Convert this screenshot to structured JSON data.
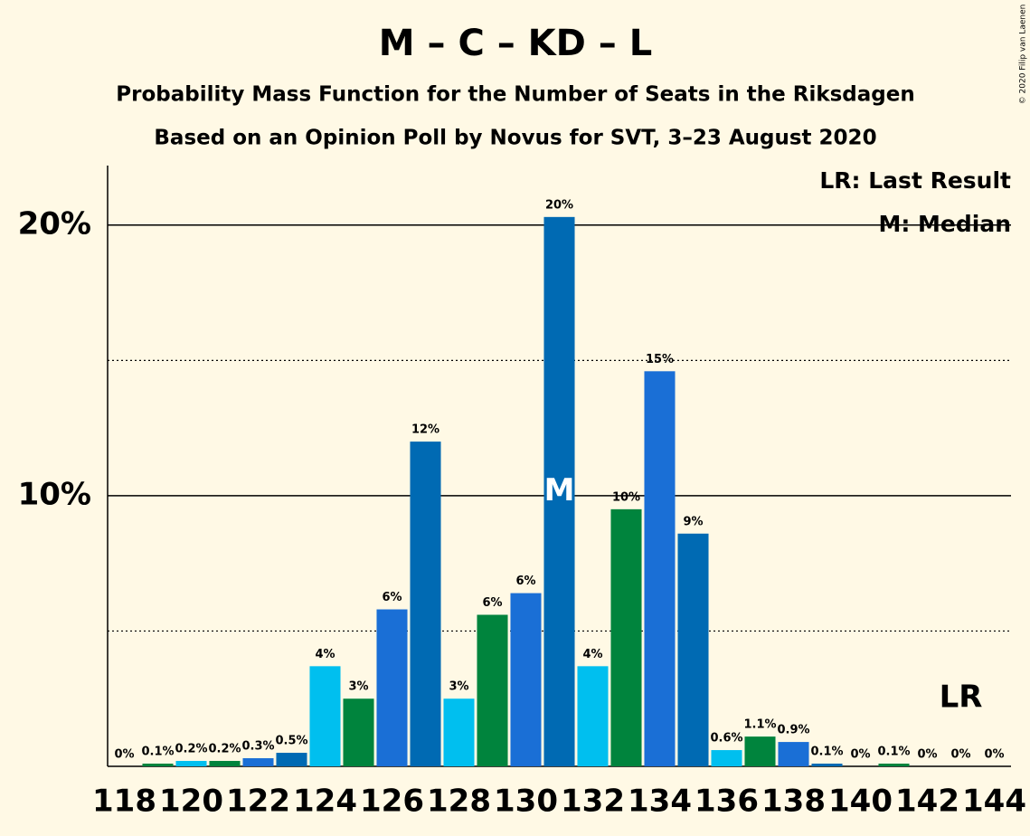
{
  "chart_data": {
    "type": "bar",
    "title": "M – C – KD – L",
    "subtitle": "Probability Mass Function for the Number of Seats in the Riksdagen",
    "subtitle2": "Based on an Opinion Poll by Novus for SVT, 3–23 August 2020",
    "copyright": "© 2020 Filip van Laenen",
    "x": [
      118,
      119,
      120,
      121,
      122,
      123,
      124,
      125,
      126,
      127,
      128,
      129,
      130,
      131,
      132,
      133,
      134,
      135,
      136,
      137,
      138,
      139,
      140,
      141,
      142,
      143,
      144
    ],
    "values": [
      0,
      0.1,
      0.2,
      0.2,
      0.3,
      0.5,
      3.7,
      2.5,
      5.8,
      12.0,
      2.5,
      5.6,
      6.4,
      20.3,
      3.7,
      9.5,
      14.6,
      8.6,
      0.6,
      1.1,
      0.9,
      0.1,
      0,
      0.1,
      0,
      0,
      0
    ],
    "value_labels": [
      "0%",
      "0.1%",
      "0.2%",
      "0.2%",
      "0.3%",
      "0.5%",
      "4%",
      "3%",
      "6%",
      "12%",
      "3%",
      "6%",
      "6%",
      "20%",
      "4%",
      "10%",
      "15%",
      "9%",
      "0.6%",
      "1.1%",
      "0.9%",
      "0.1%",
      "0%",
      "0.1%",
      "0%",
      "0%",
      "0%"
    ],
    "colors": [
      "#00bfef",
      "#00843d",
      "#00bfef",
      "#00843d",
      "#1a6fd6",
      "#006ab3",
      "#00bfef",
      "#00843d",
      "#1a6fd6",
      "#006ab3",
      "#00bfef",
      "#00843d",
      "#1a6fd6",
      "#006ab3",
      "#00bfef",
      "#00843d",
      "#1a6fd6",
      "#006ab3",
      "#00bfef",
      "#00843d",
      "#1a6fd6",
      "#006ab3",
      "#00bfef",
      "#00843d",
      "#1a6fd6",
      "#006ab3",
      "#00bfef"
    ],
    "xlim": [
      117.5,
      144.5
    ],
    "xticks": [
      118,
      120,
      122,
      124,
      126,
      128,
      130,
      132,
      134,
      136,
      138,
      140,
      142,
      144
    ],
    "ylim": [
      0,
      22.2
    ],
    "yticks": [
      {
        "value": 10,
        "label": "10%"
      },
      {
        "value": 20,
        "label": "20%"
      }
    ],
    "minor_yticks": [
      5,
      15
    ],
    "median": 131,
    "median_label": "M",
    "last_result": 143,
    "last_result_label": "LR",
    "legend": [
      "LR: Last Result",
      "M: Median"
    ]
  }
}
